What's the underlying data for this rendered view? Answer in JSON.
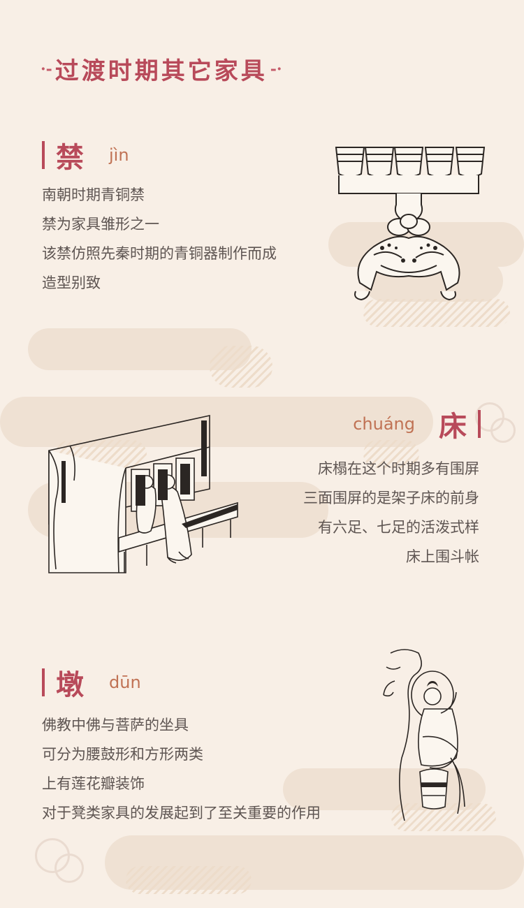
{
  "page": {
    "title": "过渡时期其它家具",
    "title_ornament_left": "·-",
    "title_ornament_right": "-·"
  },
  "sections": [
    {
      "character": "禁",
      "pinyin": "jìn",
      "lines": [
        "南朝时期青铜禁",
        "禁为家具雏形之一",
        "该禁仿照先秦时期的青铜器制作而成",
        "造型别致"
      ],
      "illustration": "bronze-jin-stand"
    },
    {
      "character": "床",
      "pinyin": "chuáng",
      "lines": [
        "床榻在这个时期多有围屏",
        "三面围屏的是架子床的前身",
        "有六足、七足的活泼式样",
        "床上围斗帐"
      ],
      "illustration": "canopy-bed-scene"
    },
    {
      "character": "墩",
      "pinyin": "dūn",
      "lines": [
        "佛教中佛与菩萨的坐具",
        "可分为腰鼓形和方形两类",
        "上有莲花瓣装饰",
        "对于凳类家具的发展起到了至关重要的作用"
      ],
      "illustration": "bodhisattva-on-stool"
    }
  ],
  "colors": {
    "background": "#f8efe6",
    "cloud": "#efe1d3",
    "accent": "#b84a5a",
    "pinyin": "#c07254",
    "body_text": "#5e5552"
  }
}
